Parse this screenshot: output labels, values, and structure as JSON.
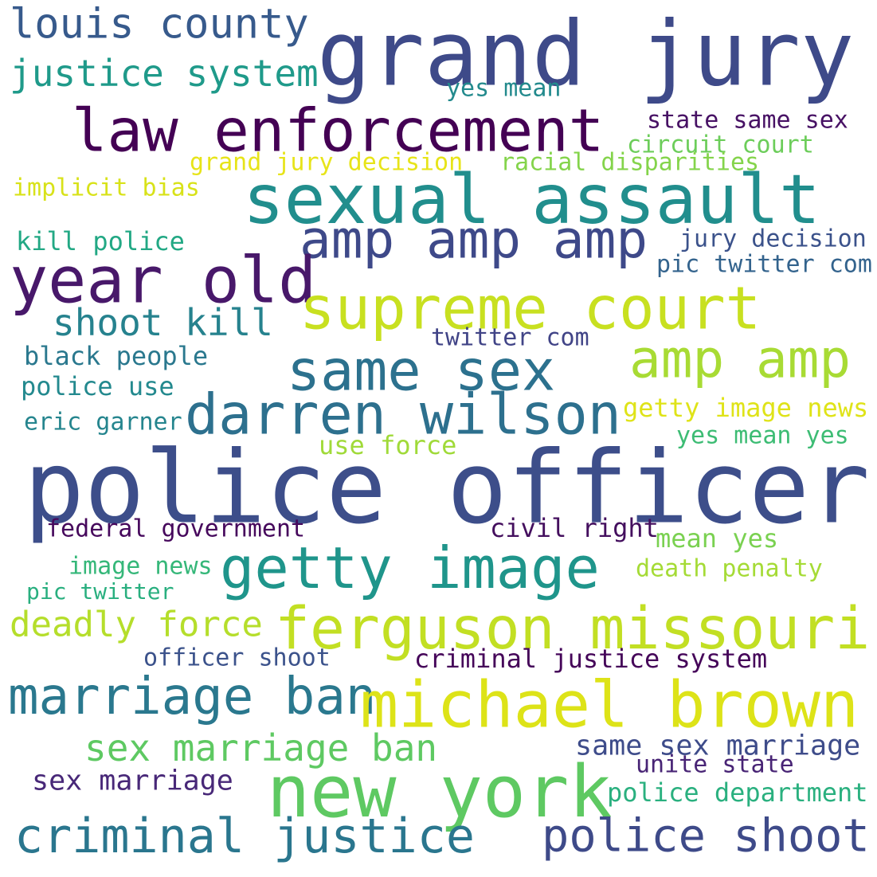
{
  "words": [
    {
      "text": "grand jury",
      "color": "#3e4a89"
    },
    {
      "text": "louis county",
      "color": "#375a8c"
    },
    {
      "text": "justice system",
      "color": "#1f9a8a"
    },
    {
      "text": "yes mean",
      "color": "#238a8d"
    },
    {
      "text": "law enforcement",
      "color": "#440154"
    },
    {
      "text": "state same sex",
      "color": "#471164"
    },
    {
      "text": "circuit court",
      "color": "#6ccd5a"
    },
    {
      "text": "grand jury decision",
      "color": "#e7e419"
    },
    {
      "text": "racial disparities",
      "color": "#84d44b"
    },
    {
      "text": "implicit bias",
      "color": "#d8e219"
    },
    {
      "text": "sexual assault",
      "color": "#218e8d"
    },
    {
      "text": "amp amp amp",
      "color": "#3e4989"
    },
    {
      "text": "kill police",
      "color": "#22a884"
    },
    {
      "text": "jury decision",
      "color": "#3b528b"
    },
    {
      "text": "pic twitter com",
      "color": "#33638d"
    },
    {
      "text": "year old",
      "color": "#48186a"
    },
    {
      "text": "supreme court",
      "color": "#c8e020"
    },
    {
      "text": "shoot kill",
      "color": "#26828e"
    },
    {
      "text": "twitter com",
      "color": "#414487"
    },
    {
      "text": "black people",
      "color": "#2a788e"
    },
    {
      "text": "same sex",
      "color": "#2c718e"
    },
    {
      "text": "amp amp",
      "color": "#a8db34"
    },
    {
      "text": "police use",
      "color": "#23898e"
    },
    {
      "text": "darren wilson",
      "color": "#2d708e"
    },
    {
      "text": "getty image news",
      "color": "#dfe318"
    },
    {
      "text": "eric garner",
      "color": "#25858e"
    },
    {
      "text": "yes mean yes",
      "color": "#3dbc74"
    },
    {
      "text": "use force",
      "color": "#a0da39"
    },
    {
      "text": "police officer",
      "color": "#3d4e8a"
    },
    {
      "text": "federal government",
      "color": "#46085c"
    },
    {
      "text": "civil right",
      "color": "#440f5e"
    },
    {
      "text": "mean yes",
      "color": "#7ad151"
    },
    {
      "text": "getty image",
      "color": "#1f958b"
    },
    {
      "text": "image news",
      "color": "#35b779"
    },
    {
      "text": "death penalty",
      "color": "#a5db36"
    },
    {
      "text": "pic twitter",
      "color": "#29af7f"
    },
    {
      "text": "deadly force",
      "color": "#b5de2b"
    },
    {
      "text": "ferguson missouri",
      "color": "#c2df23"
    },
    {
      "text": "officer shoot",
      "color": "#3b528b"
    },
    {
      "text": "criminal justice system",
      "color": "#450559"
    },
    {
      "text": "marriage ban",
      "color": "#2a788e"
    },
    {
      "text": "michael brown",
      "color": "#dde318"
    },
    {
      "text": "sex marriage ban",
      "color": "#5ec962"
    },
    {
      "text": "same sex marriage",
      "color": "#3e4c8a"
    },
    {
      "text": "unite state",
      "color": "#482475"
    },
    {
      "text": "sex marriage",
      "color": "#482878"
    },
    {
      "text": "new york",
      "color": "#5ec962"
    },
    {
      "text": "police department",
      "color": "#2ab07f"
    },
    {
      "text": "criminal justice",
      "color": "#2a768e"
    },
    {
      "text": "police shoot",
      "color": "#3e4a89"
    }
  ]
}
